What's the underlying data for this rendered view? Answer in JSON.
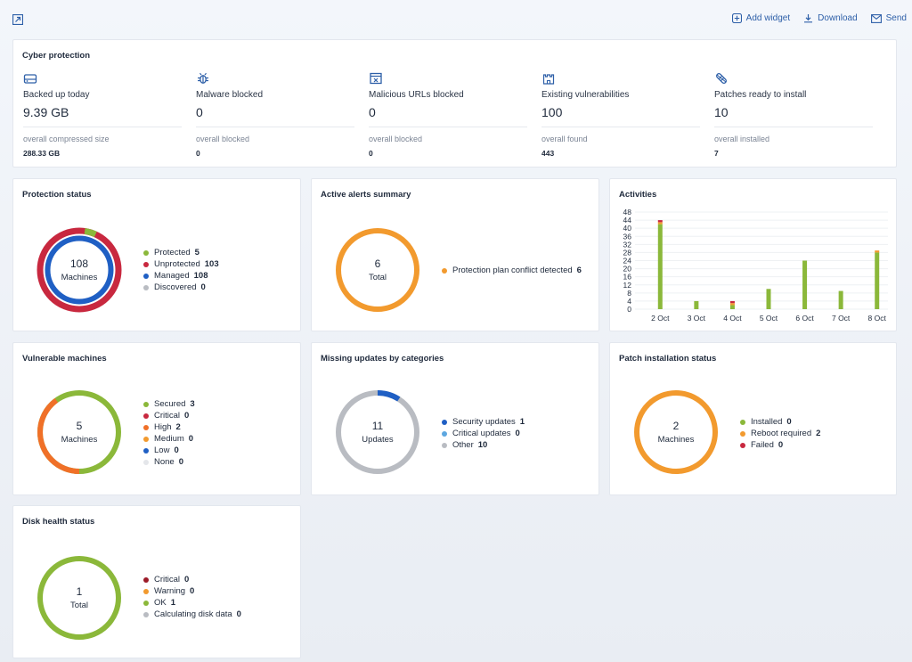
{
  "toolbar": {
    "add_widget": "Add widget",
    "download": "Download",
    "send": "Send"
  },
  "colors": {
    "link": "#2d5fa8",
    "green": "#8bb83a",
    "red": "#c8283f",
    "blue": "#1f5fc4",
    "orange": "#f29a2e",
    "gray": "#b9bcc2",
    "light_blue": "#5da7e0",
    "dark_red": "#9b1a28"
  },
  "cyber_protection": {
    "title": "Cyber protection",
    "items": [
      {
        "icon": "hard-drive-icon",
        "label": "Backed up today",
        "value": "9.39 GB",
        "sub_label": "overall compressed size",
        "sub_value": "288.33 GB"
      },
      {
        "icon": "bug-icon",
        "label": "Malware blocked",
        "value": "0",
        "sub_label": "overall blocked",
        "sub_value": "0"
      },
      {
        "icon": "browser-window-icon",
        "label": "Malicious URLs blocked",
        "value": "0",
        "sub_label": "overall blocked",
        "sub_value": "0"
      },
      {
        "icon": "castle-icon",
        "label": "Existing vulnerabilities",
        "value": "100",
        "sub_label": "overall found",
        "sub_value": "443"
      },
      {
        "icon": "bandage-icon",
        "label": "Patches ready to install",
        "value": "10",
        "sub_label": "overall installed",
        "sub_value": "7"
      }
    ]
  },
  "protection_status": {
    "title": "Protection status",
    "center_value": "108",
    "center_label": "Machines",
    "legend": [
      {
        "label": "Protected",
        "value": "5",
        "color": "#8bb83a"
      },
      {
        "label": "Unprotected",
        "value": "103",
        "color": "#c8283f"
      },
      {
        "label": "Managed",
        "value": "108",
        "color": "#1f5fc4"
      },
      {
        "label": "Discovered",
        "value": "0",
        "color": "#b9bcc2"
      }
    ]
  },
  "active_alerts": {
    "title": "Active alerts summary",
    "center_value": "6",
    "center_label": "Total",
    "legend": [
      {
        "label": "Protection plan conflict detected",
        "value": "6",
        "color": "#f29a2e"
      }
    ]
  },
  "activities": {
    "title": "Activities"
  },
  "chart_data": {
    "type": "bar",
    "categories": [
      "2 Oct",
      "3 Oct",
      "4 Oct",
      "5 Oct",
      "6 Oct",
      "7 Oct",
      "8 Oct"
    ],
    "series": [
      {
        "color": "#8bb83a",
        "values": [
          42,
          4,
          2,
          10,
          24,
          9,
          28
        ]
      },
      {
        "color": "#f29a2e",
        "values": [
          1,
          0,
          1,
          0,
          0,
          0,
          1
        ]
      },
      {
        "color": "#c8283f",
        "values": [
          1,
          0,
          1,
          0,
          0,
          0,
          0
        ]
      }
    ],
    "stacked": true,
    "yticks": [
      "0",
      "4",
      "8",
      "12",
      "16",
      "20",
      "24",
      "28",
      "32",
      "36",
      "40",
      "44",
      "48"
    ],
    "ylim": [
      0,
      48
    ],
    "grid": true
  },
  "vulnerable_machines": {
    "title": "Vulnerable machines",
    "center_value": "5",
    "center_label": "Machines",
    "legend": [
      {
        "label": "Secured",
        "value": "3",
        "color": "#8bb83a"
      },
      {
        "label": "Critical",
        "value": "0",
        "color": "#c8283f"
      },
      {
        "label": "High",
        "value": "2",
        "color": "#f07028"
      },
      {
        "label": "Medium",
        "value": "0",
        "color": "#f29a2e"
      },
      {
        "label": "Low",
        "value": "0",
        "color": "#1f5fc4"
      },
      {
        "label": "None",
        "value": "0",
        "color": "#e4e6ea"
      }
    ]
  },
  "missing_updates": {
    "title": "Missing updates by categories",
    "center_value": "11",
    "center_label": "Updates",
    "legend": [
      {
        "label": "Security updates",
        "value": "1",
        "color": "#1f5fc4"
      },
      {
        "label": "Critical updates",
        "value": "0",
        "color": "#5da7e0"
      },
      {
        "label": "Other",
        "value": "10",
        "color": "#b9bcc2"
      }
    ]
  },
  "patch_installation": {
    "title": "Patch installation status",
    "center_value": "2",
    "center_label": "Machines",
    "legend": [
      {
        "label": "Installed",
        "value": "0",
        "color": "#8bb83a"
      },
      {
        "label": "Reboot required",
        "value": "2",
        "color": "#f29a2e"
      },
      {
        "label": "Failed",
        "value": "0",
        "color": "#c8283f"
      }
    ]
  },
  "disk_health": {
    "title": "Disk health status",
    "center_value": "1",
    "center_label": "Total",
    "legend": [
      {
        "label": "Critical",
        "value": "0",
        "color": "#9b1a28"
      },
      {
        "label": "Warning",
        "value": "0",
        "color": "#f29a2e"
      },
      {
        "label": "OK",
        "value": "1",
        "color": "#8bb83a"
      },
      {
        "label": "Calculating disk data",
        "value": "0",
        "color": "#b9bcc2"
      }
    ]
  }
}
